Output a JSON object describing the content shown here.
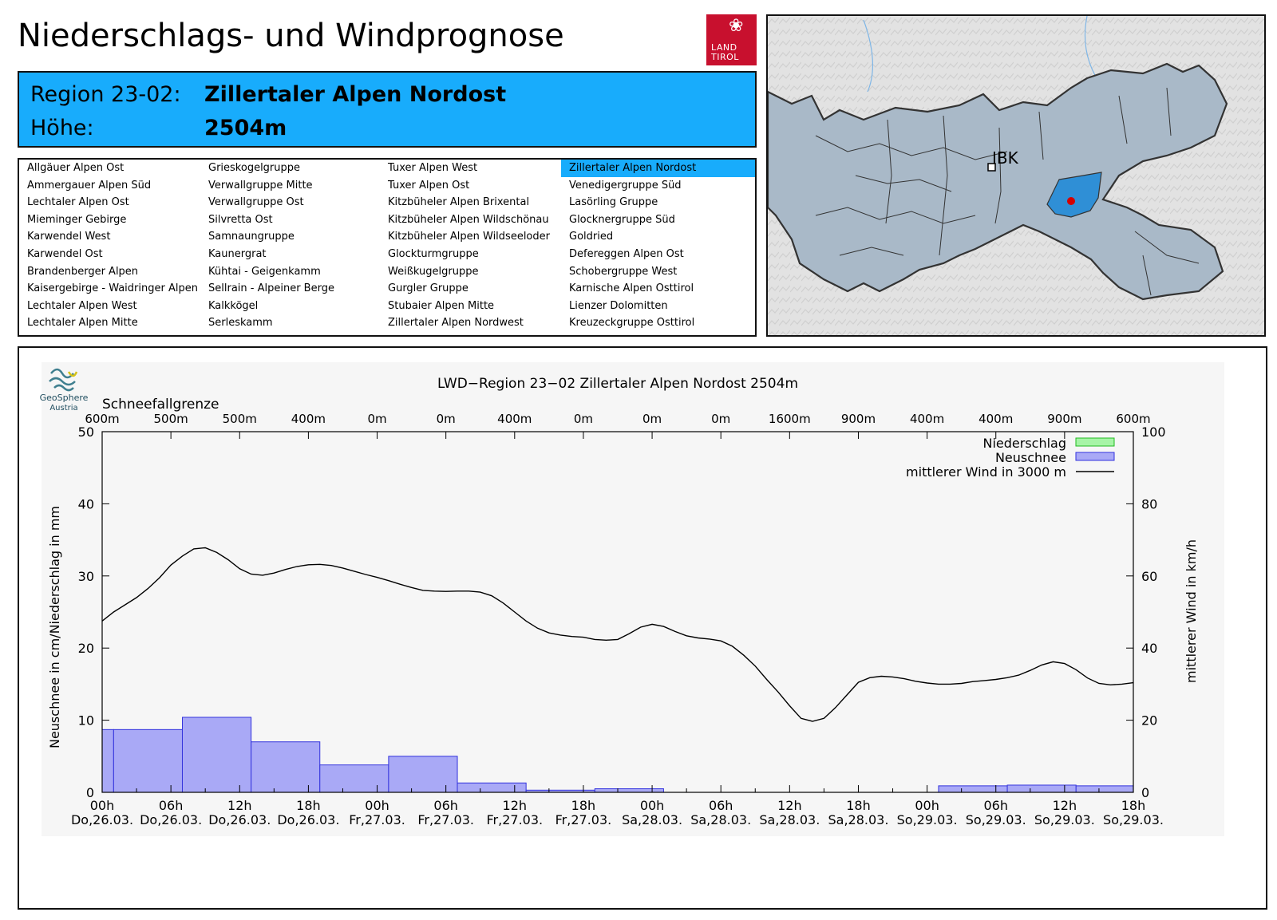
{
  "header": {
    "title": "Niederschlags- und Windprognose",
    "logo": {
      "line1": "LAND",
      "line2": "TIROL",
      "icon": "eagle-icon"
    }
  },
  "region": {
    "label_region": "Region 23-02:",
    "name": "Zillertaler Alpen Nordost",
    "label_height": "Höhe:",
    "height": "2504m",
    "highlight_color": "#18acfc"
  },
  "region_list": {
    "selected": "Zillertaler Alpen Nordost",
    "columns": [
      [
        "Allgäuer Alpen Ost",
        "Ammergauer Alpen Süd",
        "Lechtaler Alpen Ost",
        "Mieminger Gebirge",
        "Karwendel West",
        "Karwendel Ost",
        "Brandenberger Alpen",
        "Kaisergebirge - Waidringer Alpen",
        "Lechtaler Alpen West",
        "Lechtaler Alpen Mitte"
      ],
      [
        "Grieskogelgruppe",
        "Verwallgruppe Mitte",
        "Verwallgruppe Ost",
        "Silvretta Ost",
        "Samnaungruppe",
        "Kaunergrat",
        "Kühtai - Geigenkamm",
        "Sellrain - Alpeiner Berge",
        "Kalkkögel",
        "Serleskamm"
      ],
      [
        "Tuxer Alpen West",
        "Tuxer Alpen Ost",
        "Kitzbüheler Alpen Brixental",
        "Kitzbüheler Alpen Wildschönau",
        "Kitzbüheler Alpen Wildseeloder",
        "Glockturmgruppe",
        "Weißkugelgruppe",
        "Gurgler Gruppe",
        "Stubaier Alpen Mitte",
        "Zillertaler Alpen Nordwest"
      ],
      [
        "Zillertaler Alpen Nordost",
        "Venedigergruppe Süd",
        "Lasörling Gruppe",
        "Glocknergruppe Süd",
        "Goldried",
        "Defereggen Alpen Ost",
        "Schobergruppe West",
        "Karnische Alpen Osttirol",
        "Lienzer Dolomitten",
        "Kreuzeckgruppe Osttirol"
      ]
    ]
  },
  "map": {
    "city_label": "IBK",
    "marker_color": "#d40000",
    "region_fill": "#a9b9c8",
    "selected_fill": "#2f8fd6"
  },
  "chart_data": {
    "type": "bar",
    "title": "LWD−Region 23−02 Zillertaler Alpen Nordost 2504m",
    "source_logo": {
      "line1": "GeoSphere",
      "line2": "Austria"
    },
    "snowline": {
      "label": "Schneefallgrenze",
      "hours": [
        0,
        6,
        12,
        18,
        24,
        30,
        36,
        42,
        48,
        54,
        60,
        66,
        72,
        78,
        84,
        90
      ],
      "labels": [
        "600m",
        "500m",
        "500m",
        "400m",
        "0m",
        "0m",
        "400m",
        "0m",
        "0m",
        "0m",
        "1600m",
        "900m",
        "400m",
        "400m",
        "900m",
        "600m"
      ]
    },
    "xlim": [
      0,
      90
    ],
    "x_ticks": [
      0,
      6,
      12,
      18,
      24,
      30,
      36,
      42,
      48,
      54,
      60,
      66,
      72,
      78,
      84,
      90
    ],
    "x_tick_labels": [
      [
        "00h",
        "Do,26.03."
      ],
      [
        "06h",
        "Do,26.03."
      ],
      [
        "12h",
        "Do,26.03."
      ],
      [
        "18h",
        "Do,26.03."
      ],
      [
        "00h",
        "Fr,27.03."
      ],
      [
        "06h",
        "Fr,27.03."
      ],
      [
        "12h",
        "Fr,27.03."
      ],
      [
        "18h",
        "Fr,27.03."
      ],
      [
        "00h",
        "Sa,28.03."
      ],
      [
        "06h",
        "Sa,28.03."
      ],
      [
        "12h",
        "Sa,28.03."
      ],
      [
        "18h",
        "Sa,28.03."
      ],
      [
        "00h",
        "So,29.03."
      ],
      [
        "06h",
        "So,29.03."
      ],
      [
        "12h",
        "So,29.03."
      ],
      [
        "18h",
        "So,29.03."
      ]
    ],
    "ylabel": "Neuschnee in cm/Niederschlag in mm",
    "ylim": [
      0,
      50
    ],
    "y_ticks": [
      0,
      10,
      20,
      30,
      40,
      50
    ],
    "y2label": "mittlerer Wind in km/h",
    "y2lim": [
      0,
      100
    ],
    "y2_ticks": [
      0,
      20,
      40,
      60,
      80,
      100
    ],
    "legend_position": "top-right",
    "series": [
      {
        "name": "Niederschlag",
        "kind": "bar",
        "color": "#a6f4a6",
        "edge": "#22bb22",
        "bars": []
      },
      {
        "name": "Neuschnee",
        "kind": "bar",
        "color": "#a9a9f6",
        "edge": "#3333dd",
        "bars": [
          {
            "start": 0,
            "end": 1,
            "value": 8.7
          },
          {
            "start": 1,
            "end": 7,
            "value": 8.7
          },
          {
            "start": 7,
            "end": 13,
            "value": 10.4
          },
          {
            "start": 13,
            "end": 19,
            "value": 7.0
          },
          {
            "start": 19,
            "end": 25,
            "value": 3.8
          },
          {
            "start": 25,
            "end": 31,
            "value": 5.0
          },
          {
            "start": 31,
            "end": 37,
            "value": 1.3
          },
          {
            "start": 37,
            "end": 43,
            "value": 0.3
          },
          {
            "start": 43,
            "end": 49,
            "value": 0.5
          },
          {
            "start": 73,
            "end": 79,
            "value": 0.9
          },
          {
            "start": 79,
            "end": 85,
            "value": 1.0
          },
          {
            "start": 85,
            "end": 90,
            "value": 0.9
          }
        ]
      },
      {
        "name": "mittlerer Wind in 3000 m",
        "kind": "line",
        "axis": "y2",
        "color": "#000000",
        "x": [
          0,
          1,
          2,
          3,
          4,
          5,
          6,
          7,
          8,
          9,
          10,
          11,
          12,
          13,
          14,
          15,
          16,
          17,
          18,
          19,
          20,
          21,
          22,
          23,
          24,
          25,
          26,
          27,
          28,
          29,
          30,
          31,
          32,
          33,
          34,
          35,
          36,
          37,
          38,
          39,
          40,
          41,
          42,
          43,
          44,
          45,
          46,
          47,
          48,
          49,
          50,
          51,
          52,
          53,
          54,
          55,
          56,
          57,
          58,
          59,
          60,
          61,
          62,
          63,
          64,
          65,
          66,
          67,
          68,
          69,
          70,
          71,
          72,
          73,
          74,
          75,
          76,
          77,
          78,
          79,
          80,
          81,
          82,
          83,
          84,
          85,
          86,
          87,
          88,
          89,
          90
        ],
        "y": [
          47.5,
          50,
          52,
          54,
          56.5,
          59.5,
          63,
          65.5,
          67.5,
          67.8,
          66.5,
          64.5,
          62,
          60.5,
          60.2,
          60.8,
          61.8,
          62.6,
          63.1,
          63.2,
          62.9,
          62.2,
          61.3,
          60.4,
          59.6,
          58.7,
          57.7,
          56.8,
          56.0,
          55.8,
          55.7,
          55.8,
          55.8,
          55.5,
          54.5,
          52.5,
          50,
          47.5,
          45.5,
          44.2,
          43.6,
          43.2,
          43.0,
          42.4,
          42.2,
          42.4,
          44,
          45.8,
          46.6,
          46.0,
          44.6,
          43.4,
          42.8,
          42.5,
          42.0,
          40.5,
          38.0,
          35.0,
          31.3,
          27.8,
          24.0,
          20.5,
          19.7,
          20.5,
          23.5,
          27.0,
          30.5,
          31.8,
          32.2,
          32.0,
          31.5,
          30.8,
          30.3,
          30.0,
          30.0,
          30.2,
          30.7,
          31.0,
          31.3,
          31.8,
          32.5,
          33.8,
          35.3,
          36.2,
          35.7,
          34.0,
          31.7,
          30.2,
          29.8,
          30.0,
          30.4
        ]
      }
    ]
  }
}
